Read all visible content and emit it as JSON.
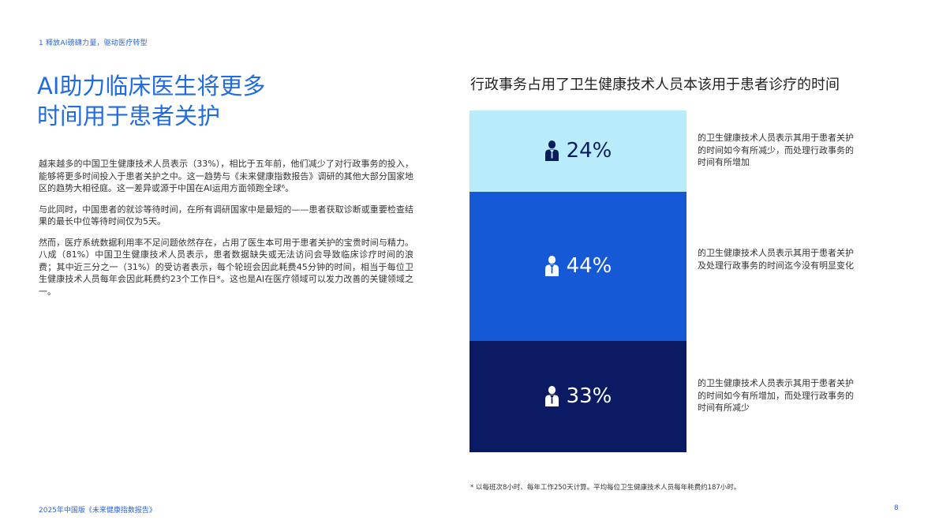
{
  "header": {
    "breadcrumb": "1 释放AI磅礴力量，驱动医疗转型"
  },
  "title": {
    "line1": "AI助力临床医生将更多",
    "line2": "时间用于患者关护"
  },
  "body": {
    "paragraphs": [
      "越来越多的中国卫生健康技术人员表示（33%），相比于五年前，他们减少了对行政事务的投入，能够将更多时间投入于患者关护之中。这一趋势与《未来健康指数报告》调研的其他大部分国家地区的趋势大相径庭。这一差异或源于中国在AI运用方面领跑全球⁶。",
      "与此同时，中国患者的就诊等待时间，在所有调研国家中是最短的——患者获取诊断或重要检查结果的最长中位等待时间仅为5天。",
      "然而，医疗系统数据利用率不足问题依然存在，占用了医生本可用于患者关护的宝贵时间与精力。八成（81%）中国卫生健康技术人员表示，患者数据缺失或无法访问会导致临床诊疗时间的浪费；其中近三分之一（31%）的受访者表示，每个轮班会因此耗费45分钟的时间，相当于每位卫生健康技术人员每年会因此耗费约23个工作日*。这也是AI在医疗领域可以发力改善的关键领域之一。"
    ]
  },
  "chart_data": {
    "type": "bar",
    "stacked": true,
    "title": "行政事务占用了卫生健康技术人员本该用于患者诊疗的时间",
    "series": [
      {
        "value": 24,
        "label": "24%",
        "color": "#b8ecfb",
        "text_color": "#0a1c5e",
        "icon": "person-icon",
        "description": "的卫生健康技术人员表示其用于患者关护的时间如今有所减少，而处理行政事务的时间有所增加"
      },
      {
        "value": 44,
        "label": "44%",
        "color": "#1659d6",
        "text_color": "#ffffff",
        "icon": "person-icon",
        "description": "的卫生健康技术人员表示其用于患者关护及处理行政事务的时间迄今没有明显变化"
      },
      {
        "value": 33,
        "label": "33%",
        "color": "#0b1b63",
        "text_color": "#ffffff",
        "icon": "person-icon",
        "description": "的卫生健康技术人员表示其用于患者关护的时间如今有所增加，而处理行政事务的时间有所减少"
      }
    ]
  },
  "footnote": "* 以每班次8小时、每年工作250天计算。平均每位卫生健康技术人员每年耗费约187小时。",
  "footer": {
    "report": "2025年中国版《未来健康指数报告》",
    "page": "8"
  }
}
